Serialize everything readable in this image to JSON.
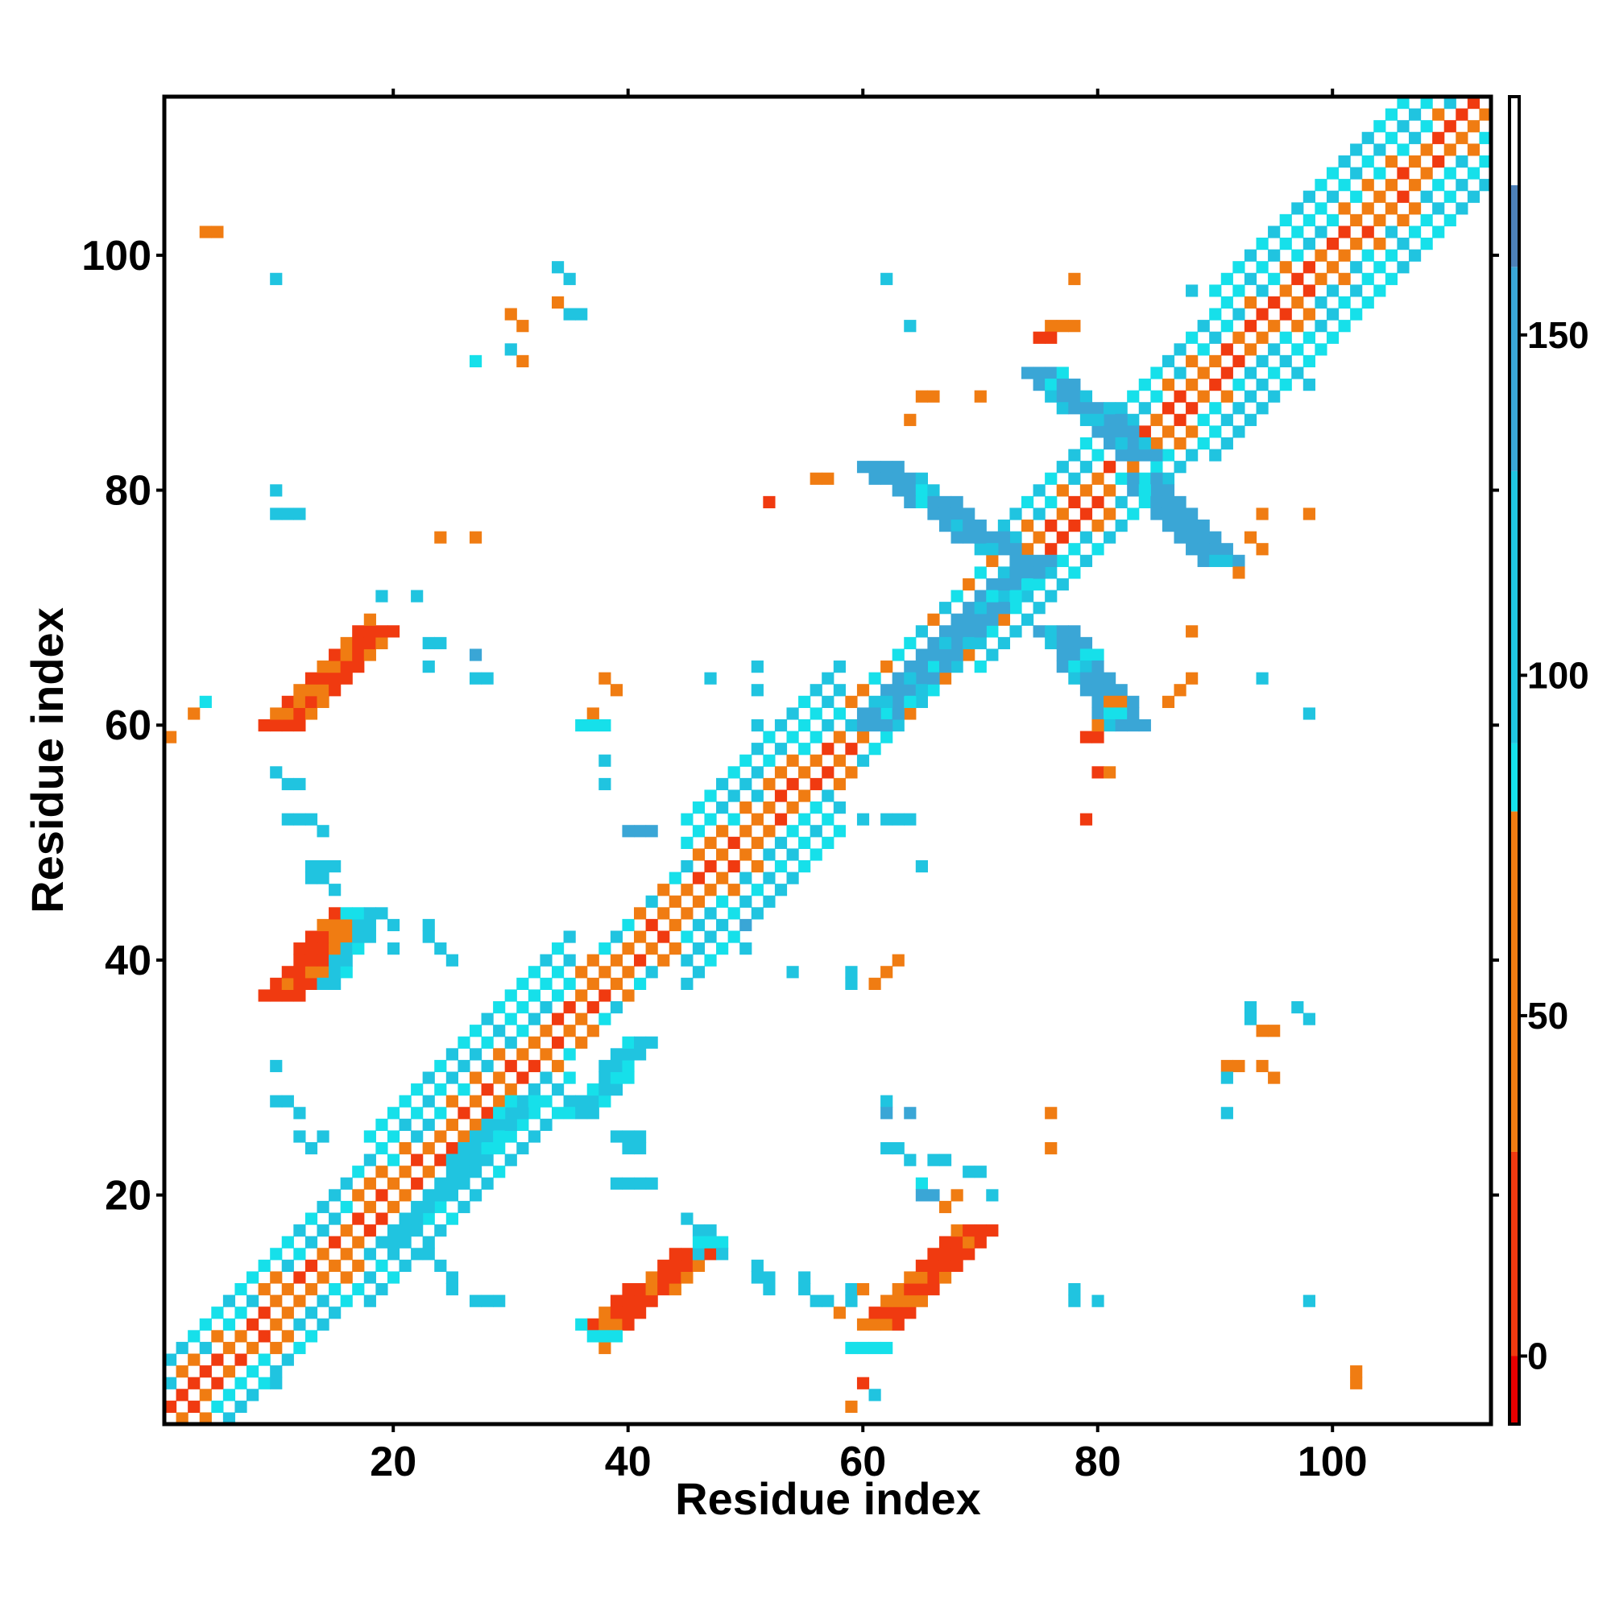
{
  "chart_data": {
    "type": "heatmap",
    "xlabel": "Residue index",
    "ylabel": "Residue index",
    "xlim": [
      0.5,
      113.5
    ],
    "ylim": [
      0.5,
      113.5
    ],
    "x_ticks": [
      "20",
      "40",
      "60",
      "80",
      "100"
    ],
    "x_tick_values": [
      20,
      40,
      60,
      80,
      100
    ],
    "y_ticks": [
      "20",
      "40",
      "60",
      "80",
      "100"
    ],
    "y_tick_values": [
      20,
      40,
      60,
      80,
      100
    ],
    "colorbar": {
      "range": [
        -10,
        185
      ],
      "ticks": [
        "0",
        "50",
        "100",
        "150"
      ],
      "tick_values": [
        0,
        50,
        100,
        150
      ],
      "segments": [
        {
          "from": -10,
          "to": 0,
          "color": "#e60000"
        },
        {
          "from": 0,
          "to": 30,
          "color": "#f03a10"
        },
        {
          "from": 30,
          "to": 80,
          "color": "#f07c12"
        },
        {
          "from": 80,
          "to": 90,
          "color": "#16e0ea"
        },
        {
          "from": 90,
          "to": 130,
          "color": "#20c4e0"
        },
        {
          "from": 130,
          "to": 160,
          "color": "#3aa6d6"
        },
        {
          "from": 160,
          "to": 172,
          "color": "#4d80b8"
        },
        {
          "from": 172,
          "to": 185,
          "color": "#ffffff"
        }
      ]
    },
    "grid": false,
    "diagonal_bands": [
      {
        "x0": 1,
        "y0": 1,
        "x1": 18,
        "y1": 18,
        "width": 5
      },
      {
        "x0": 18,
        "y0": 18,
        "x1": 35,
        "y1": 35,
        "width": 8
      },
      {
        "x0": 35,
        "y0": 35,
        "x1": 45,
        "y1": 45,
        "width": 4
      },
      {
        "x0": 45,
        "y0": 45,
        "x1": 58,
        "y1": 58,
        "width": 8
      },
      {
        "x0": 58,
        "y0": 58,
        "x1": 70,
        "y1": 70,
        "width": 4
      },
      {
        "x0": 70,
        "y0": 70,
        "x1": 82,
        "y1": 82,
        "width": 5
      },
      {
        "x0": 82,
        "y0": 82,
        "x1": 90,
        "y1": 90,
        "width": 5
      },
      {
        "x0": 90,
        "y0": 90,
        "x1": 113,
        "y1": 113,
        "width": 8
      }
    ],
    "off_diagonal_bands": [
      {
        "x0": 9,
        "y0": 60,
        "x1": 17,
        "y1": 68,
        "width": 4,
        "v": 10
      },
      {
        "x0": 60,
        "y0": 9,
        "x1": 68,
        "y1": 17,
        "width": 4,
        "v": 10
      },
      {
        "x0": 9,
        "y0": 37,
        "x1": 15,
        "y1": 44,
        "width": 4,
        "v": 8
      },
      {
        "x0": 37,
        "y0": 9,
        "x1": 44,
        "y1": 15,
        "width": 4,
        "v": 8
      },
      {
        "x0": 59,
        "y0": 60,
        "x1": 73,
        "y1": 74,
        "width": 4,
        "v": 150
      },
      {
        "x0": 60,
        "y0": 82,
        "x1": 70,
        "y1": 75,
        "width": 4,
        "v": 150
      },
      {
        "x0": 75,
        "y0": 68,
        "x1": 81,
        "y1": 60,
        "width": 4,
        "v": 150
      },
      {
        "x0": 74,
        "y0": 90,
        "x1": 82,
        "y1": 83,
        "width": 4,
        "v": 150
      },
      {
        "x0": 82,
        "y0": 81,
        "x1": 89,
        "y1": 74,
        "width": 4,
        "v": 150
      },
      {
        "x0": 19,
        "y0": 16,
        "x1": 30,
        "y1": 28,
        "width": 3,
        "v": 115
      },
      {
        "x0": 35,
        "y0": 27,
        "x1": 40,
        "y1": 33,
        "width": 3,
        "v": 115
      },
      {
        "x0": 14,
        "y0": 38,
        "x1": 18,
        "y1": 44,
        "width": 2,
        "v": 115
      }
    ],
    "points": [
      [
        4,
        102,
        45
      ],
      [
        5,
        102,
        45
      ],
      [
        10,
        98,
        115
      ],
      [
        30,
        95,
        45
      ],
      [
        31,
        94,
        45
      ],
      [
        34,
        96,
        45
      ],
      [
        35,
        95,
        115
      ],
      [
        36,
        95,
        115
      ],
      [
        34,
        99,
        115
      ],
      [
        35,
        98,
        115
      ],
      [
        27,
        91,
        88
      ],
      [
        30,
        92,
        115
      ],
      [
        31,
        91,
        45
      ],
      [
        62,
        98,
        115
      ],
      [
        64,
        94,
        115
      ],
      [
        78,
        98,
        45
      ],
      [
        65,
        88,
        45
      ],
      [
        66,
        88,
        45
      ],
      [
        64,
        86,
        45
      ],
      [
        70,
        88,
        30
      ],
      [
        57,
        81,
        30
      ],
      [
        56,
        81,
        45
      ],
      [
        52,
        79,
        0
      ],
      [
        10,
        80,
        115
      ],
      [
        10,
        78,
        115
      ],
      [
        11,
        78,
        115
      ],
      [
        12,
        78,
        115
      ],
      [
        24,
        76,
        45
      ],
      [
        27,
        76,
        45
      ],
      [
        19,
        71,
        115
      ],
      [
        22,
        71,
        115
      ],
      [
        18,
        69,
        45
      ],
      [
        23,
        67,
        115
      ],
      [
        23,
        65,
        115
      ],
      [
        24,
        67,
        115
      ],
      [
        27,
        66,
        150
      ],
      [
        27,
        64,
        115
      ],
      [
        28,
        64,
        115
      ],
      [
        4,
        62,
        88
      ],
      [
        3,
        61,
        45
      ],
      [
        1,
        59,
        45
      ],
      [
        38,
        64,
        45
      ],
      [
        39,
        63,
        45
      ],
      [
        37,
        61,
        45
      ],
      [
        36,
        60,
        88
      ],
      [
        37,
        60,
        88
      ],
      [
        38,
        60,
        88
      ],
      [
        47,
        64,
        115
      ],
      [
        51,
        65,
        115
      ],
      [
        51,
        63,
        115
      ],
      [
        51,
        60,
        115
      ],
      [
        38,
        57,
        115
      ],
      [
        10,
        56,
        115
      ],
      [
        11,
        55,
        115
      ],
      [
        12,
        55,
        115
      ],
      [
        38,
        55,
        115
      ],
      [
        11,
        52,
        115
      ],
      [
        12,
        52,
        115
      ],
      [
        13,
        52,
        115
      ],
      [
        14,
        51,
        115
      ],
      [
        40,
        51,
        150
      ],
      [
        41,
        51,
        150
      ],
      [
        42,
        51,
        150
      ],
      [
        60,
        52,
        115
      ],
      [
        62,
        52,
        115
      ],
      [
        63,
        52,
        115
      ],
      [
        64,
        52,
        115
      ],
      [
        58,
        53,
        115
      ],
      [
        65,
        48,
        115
      ],
      [
        13,
        48,
        115
      ],
      [
        14,
        48,
        115
      ],
      [
        15,
        48,
        115
      ],
      [
        13,
        47,
        115
      ],
      [
        14,
        47,
        115
      ],
      [
        15,
        46,
        115
      ],
      [
        16,
        44,
        88
      ],
      [
        17,
        44,
        88
      ],
      [
        20,
        43,
        115
      ],
      [
        20,
        41,
        115
      ],
      [
        23,
        43,
        115
      ],
      [
        23,
        42,
        115
      ],
      [
        24,
        41,
        115
      ],
      [
        25,
        40,
        115
      ],
      [
        50,
        43,
        150
      ],
      [
        50,
        41,
        115
      ],
      [
        54,
        39,
        115
      ],
      [
        59,
        39,
        115
      ],
      [
        59,
        38,
        115
      ],
      [
        61,
        38,
        45
      ],
      [
        62,
        39,
        45
      ],
      [
        63,
        40,
        45
      ],
      [
        93,
        36,
        115
      ],
      [
        93,
        35,
        115
      ],
      [
        94,
        34,
        45
      ],
      [
        95,
        34,
        45
      ],
      [
        97,
        36,
        115
      ],
      [
        98,
        35,
        115
      ],
      [
        91,
        31,
        45
      ],
      [
        92,
        31,
        45
      ],
      [
        91,
        30,
        115
      ],
      [
        94,
        31,
        45
      ],
      [
        95,
        30,
        45
      ],
      [
        76,
        27,
        45
      ],
      [
        76,
        24,
        45
      ],
      [
        91,
        27,
        115
      ],
      [
        10,
        31,
        115
      ],
      [
        10,
        28,
        115
      ],
      [
        11,
        28,
        115
      ],
      [
        12,
        27,
        115
      ],
      [
        12,
        25,
        115
      ],
      [
        13,
        24,
        115
      ],
      [
        14,
        25,
        115
      ],
      [
        62,
        28,
        115
      ],
      [
        62,
        27,
        150
      ],
      [
        64,
        27,
        150
      ],
      [
        62,
        24,
        115
      ],
      [
        63,
        24,
        115
      ],
      [
        64,
        23,
        115
      ],
      [
        66,
        23,
        115
      ],
      [
        67,
        23,
        115
      ],
      [
        39,
        25,
        115
      ],
      [
        40,
        25,
        115
      ],
      [
        41,
        25,
        115
      ],
      [
        40,
        24,
        115
      ],
      [
        41,
        24,
        115
      ],
      [
        39,
        21,
        115
      ],
      [
        40,
        21,
        115
      ],
      [
        41,
        21,
        115
      ],
      [
        42,
        21,
        115
      ],
      [
        69,
        22,
        115
      ],
      [
        70,
        22,
        115
      ],
      [
        65,
        21,
        88
      ],
      [
        65,
        20,
        150
      ],
      [
        66,
        20,
        150
      ],
      [
        67,
        19,
        45
      ],
      [
        68,
        20,
        45
      ],
      [
        71,
        20,
        115
      ],
      [
        45,
        18,
        115
      ],
      [
        46,
        17,
        115
      ],
      [
        47,
        17,
        115
      ],
      [
        46,
        16,
        88
      ],
      [
        47,
        16,
        88
      ],
      [
        48,
        16,
        88
      ],
      [
        46,
        15,
        115
      ],
      [
        48,
        15,
        115
      ],
      [
        51,
        14,
        115
      ],
      [
        51,
        13,
        115
      ],
      [
        52,
        12,
        115
      ],
      [
        52,
        13,
        115
      ],
      [
        55,
        13,
        115
      ],
      [
        55,
        12,
        115
      ],
      [
        56,
        11,
        115
      ],
      [
        57,
        11,
        115
      ],
      [
        58,
        10,
        30
      ],
      [
        59,
        12,
        115
      ],
      [
        59,
        11,
        115
      ],
      [
        60,
        12,
        45
      ],
      [
        60,
        4,
        0
      ],
      [
        61,
        3,
        115
      ],
      [
        59,
        2,
        45
      ],
      [
        22,
        15,
        115
      ],
      [
        23,
        15,
        115
      ],
      [
        24,
        14,
        115
      ],
      [
        25,
        13,
        115
      ],
      [
        25,
        12,
        115
      ],
      [
        27,
        11,
        115
      ],
      [
        28,
        11,
        115
      ],
      [
        29,
        11,
        115
      ],
      [
        78,
        12,
        115
      ],
      [
        78,
        11,
        115
      ],
      [
        80,
        11,
        115
      ],
      [
        98,
        11,
        115
      ],
      [
        102,
        5,
        45
      ],
      [
        102,
        4,
        45
      ],
      [
        10,
        4,
        115
      ],
      [
        38,
        7,
        45
      ],
      [
        36,
        9,
        88
      ],
      [
        37,
        8,
        88
      ],
      [
        38,
        8,
        88
      ],
      [
        39,
        8,
        88
      ],
      [
        59,
        7,
        88
      ],
      [
        60,
        7,
        88
      ],
      [
        61,
        7,
        88
      ],
      [
        62,
        7,
        88
      ],
      [
        79,
        59,
        0
      ],
      [
        80,
        59,
        0
      ],
      [
        80,
        56,
        0
      ],
      [
        81,
        56,
        45
      ],
      [
        79,
        52,
        0
      ],
      [
        78,
        94,
        45
      ],
      [
        76,
        94,
        45
      ],
      [
        77,
        94,
        30
      ],
      [
        75,
        93,
        0
      ],
      [
        76,
        93,
        0
      ],
      [
        88,
        97,
        115
      ],
      [
        98,
        89,
        115
      ],
      [
        94,
        89,
        115
      ],
      [
        98,
        78,
        45
      ],
      [
        94,
        78,
        45
      ],
      [
        93,
        76,
        30
      ],
      [
        94,
        75,
        45
      ],
      [
        88,
        68,
        45
      ],
      [
        88,
        64,
        45
      ],
      [
        87,
        63,
        30
      ],
      [
        86,
        62,
        30
      ],
      [
        94,
        64,
        115
      ],
      [
        98,
        61,
        115
      ],
      [
        80,
        60,
        30
      ],
      [
        76,
        71,
        115
      ],
      [
        74,
        71,
        115
      ],
      [
        81,
        62,
        45
      ],
      [
        82,
        62,
        45
      ],
      [
        90,
        74,
        115
      ],
      [
        91,
        74,
        115
      ],
      [
        92,
        73,
        45
      ]
    ]
  }
}
